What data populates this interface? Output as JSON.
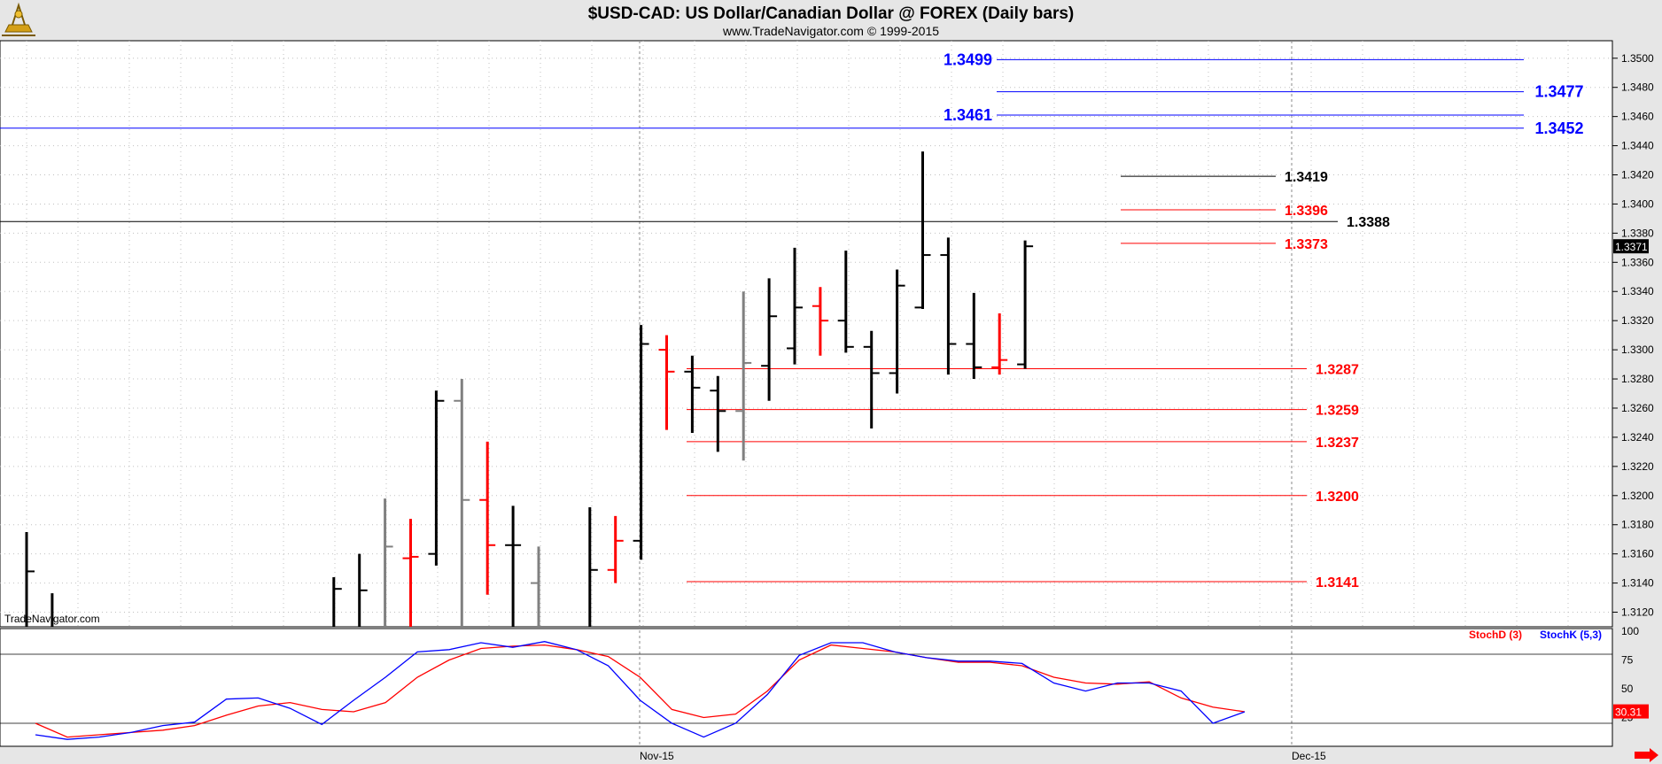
{
  "header": {
    "title": "$USD-CAD:  US Dollar/Canadian Dollar @ FOREX  (Daily bars)",
    "subtitle": "www.TradeNavigator.com © 1999-2015",
    "watermark": "TradeNavigator.com"
  },
  "colors": {
    "header_bg": "#e6e6e6",
    "blue_level": "#0000ff",
    "red_level": "#ff0000",
    "black": "#000000",
    "gray_bar": "#808080",
    "arrow": "#ff0000"
  },
  "chart_data": [
    {
      "type": "ohlc",
      "name": "price",
      "ylim": [
        1.311,
        1.3512
      ],
      "y_ticks": [
        "1.3500",
        "1.3480",
        "1.3460",
        "1.3440",
        "1.3420",
        "1.3400",
        "1.3380",
        "1.3360",
        "1.3340",
        "1.3320",
        "1.3300",
        "1.3280",
        "1.3260",
        "1.3240",
        "1.3220",
        "1.3200",
        "1.3180",
        "1.3160",
        "1.3140",
        "1.3120"
      ],
      "x_ticks": [
        "Nov-15",
        "Dec-15"
      ],
      "last_price": "1.3371",
      "bars": [
        {
          "h": 1.3175,
          "l": 1.311,
          "o": null,
          "c": 1.3148,
          "color": "black"
        },
        {
          "h": 1.3133,
          "l": 1.311,
          "o": null,
          "c": null,
          "color": "black"
        },
        {
          "h": 1.3144,
          "l": 1.311,
          "o": null,
          "c": 1.3136,
          "color": "black"
        },
        {
          "h": 1.316,
          "l": 1.311,
          "o": null,
          "c": 1.3135,
          "color": "black"
        },
        {
          "h": 1.3198,
          "l": 1.311,
          "o": null,
          "c": 1.3165,
          "color": "gray"
        },
        {
          "h": 1.3184,
          "l": 1.311,
          "o": 1.3157,
          "c": 1.3158,
          "color": "red"
        },
        {
          "h": 1.3272,
          "l": 1.3152,
          "o": 1.316,
          "c": 1.3265,
          "color": "black"
        },
        {
          "h": 1.328,
          "l": 1.311,
          "o": 1.3265,
          "c": 1.3197,
          "color": "gray"
        },
        {
          "h": 1.3237,
          "l": 1.3132,
          "o": 1.3197,
          "c": 1.3166,
          "color": "red"
        },
        {
          "h": 1.3193,
          "l": 1.311,
          "o": 1.3166,
          "c": 1.3166,
          "color": "black"
        },
        {
          "h": 1.3165,
          "l": 1.311,
          "o": 1.314,
          "c": null,
          "color": "gray"
        },
        {
          "h": 1.3192,
          "l": 1.311,
          "o": null,
          "c": 1.3149,
          "color": "black"
        },
        {
          "h": 1.3186,
          "l": 1.314,
          "o": 1.3149,
          "c": 1.3169,
          "color": "red"
        },
        {
          "h": 1.3317,
          "l": 1.3156,
          "o": 1.3169,
          "c": 1.3304,
          "color": "black"
        },
        {
          "h": 1.331,
          "l": 1.3245,
          "o": 1.33,
          "c": 1.3285,
          "color": "red"
        },
        {
          "h": 1.3296,
          "l": 1.3243,
          "o": 1.3285,
          "c": 1.3274,
          "color": "black"
        },
        {
          "h": 1.3282,
          "l": 1.323,
          "o": 1.3272,
          "c": 1.3258,
          "color": "black"
        },
        {
          "h": 1.334,
          "l": 1.3224,
          "o": 1.3258,
          "c": 1.3291,
          "color": "gray"
        },
        {
          "h": 1.3349,
          "l": 1.3265,
          "o": 1.3289,
          "c": 1.3323,
          "color": "black"
        },
        {
          "h": 1.337,
          "l": 1.329,
          "o": 1.3301,
          "c": 1.3329,
          "color": "black"
        },
        {
          "h": 1.3343,
          "l": 1.3296,
          "o": 1.333,
          "c": 1.332,
          "color": "red"
        },
        {
          "h": 1.3368,
          "l": 1.3298,
          "o": 1.332,
          "c": 1.3302,
          "color": "black"
        },
        {
          "h": 1.3313,
          "l": 1.3246,
          "o": 1.3302,
          "c": 1.3284,
          "color": "black"
        },
        {
          "h": 1.3355,
          "l": 1.327,
          "o": 1.3284,
          "c": 1.3344,
          "color": "black"
        },
        {
          "h": 1.3436,
          "l": 1.3328,
          "o": 1.3329,
          "c": 1.3365,
          "color": "black"
        },
        {
          "h": 1.3377,
          "l": 1.3283,
          "o": 1.3365,
          "c": 1.3304,
          "color": "black"
        },
        {
          "h": 1.3339,
          "l": 1.328,
          "o": 1.3304,
          "c": 1.3288,
          "color": "black"
        },
        {
          "h": 1.3325,
          "l": 1.3283,
          "o": 1.3288,
          "c": 1.3293,
          "color": "red"
        },
        {
          "h": 1.3375,
          "l": 1.3287,
          "o": 1.329,
          "c": 1.3371,
          "color": "black"
        }
      ],
      "levels": [
        {
          "value": 1.3499,
          "label": "1.3499",
          "color": "blue"
        },
        {
          "value": 1.3477,
          "label": "1.3477",
          "color": "blue"
        },
        {
          "value": 1.3461,
          "label": "1.3461",
          "color": "blue"
        },
        {
          "value": 1.3452,
          "label": "1.3452",
          "color": "blue"
        },
        {
          "value": 1.3419,
          "label": "1.3419",
          "color": "black"
        },
        {
          "value": 1.3396,
          "label": "1.3396",
          "color": "red"
        },
        {
          "value": 1.3388,
          "label": "1.3388",
          "color": "black"
        },
        {
          "value": 1.3373,
          "label": "1.3373",
          "color": "red"
        },
        {
          "value": 1.3287,
          "label": "1.3287",
          "color": "red"
        },
        {
          "value": 1.3259,
          "label": "1.3259",
          "color": "red"
        },
        {
          "value": 1.3237,
          "label": "1.3237",
          "color": "red"
        },
        {
          "value": 1.32,
          "label": "1.3200",
          "color": "red"
        },
        {
          "value": 1.3141,
          "label": "1.3141",
          "color": "red"
        }
      ]
    },
    {
      "type": "line",
      "name": "stochastic",
      "ylim": [
        0,
        100
      ],
      "y_ticks": [
        "100",
        "75",
        "50",
        "25"
      ],
      "reference_lines": [
        80,
        20
      ],
      "last_value": "30.31",
      "series": [
        {
          "name": "StochD (3)",
          "color": "red",
          "values": [
            20,
            8,
            10,
            12,
            14,
            18,
            27,
            35,
            38,
            32,
            30,
            38,
            60,
            75,
            85,
            87,
            88,
            84,
            78,
            60,
            32,
            25,
            28,
            48,
            75,
            88,
            85,
            82,
            77,
            73,
            73,
            70,
            60,
            55,
            54,
            56,
            42,
            34,
            30
          ]
        },
        {
          "name": "StochK (5,3)",
          "color": "blue",
          "values": [
            10,
            6,
            8,
            12,
            18,
            21,
            41,
            42,
            33,
            19,
            40,
            60,
            82,
            84,
            90,
            86,
            91,
            84,
            70,
            40,
            20,
            8,
            20,
            45,
            79,
            90,
            90,
            82,
            77,
            74,
            74,
            72,
            55,
            48,
            55,
            55,
            48,
            20,
            30
          ]
        }
      ]
    }
  ]
}
